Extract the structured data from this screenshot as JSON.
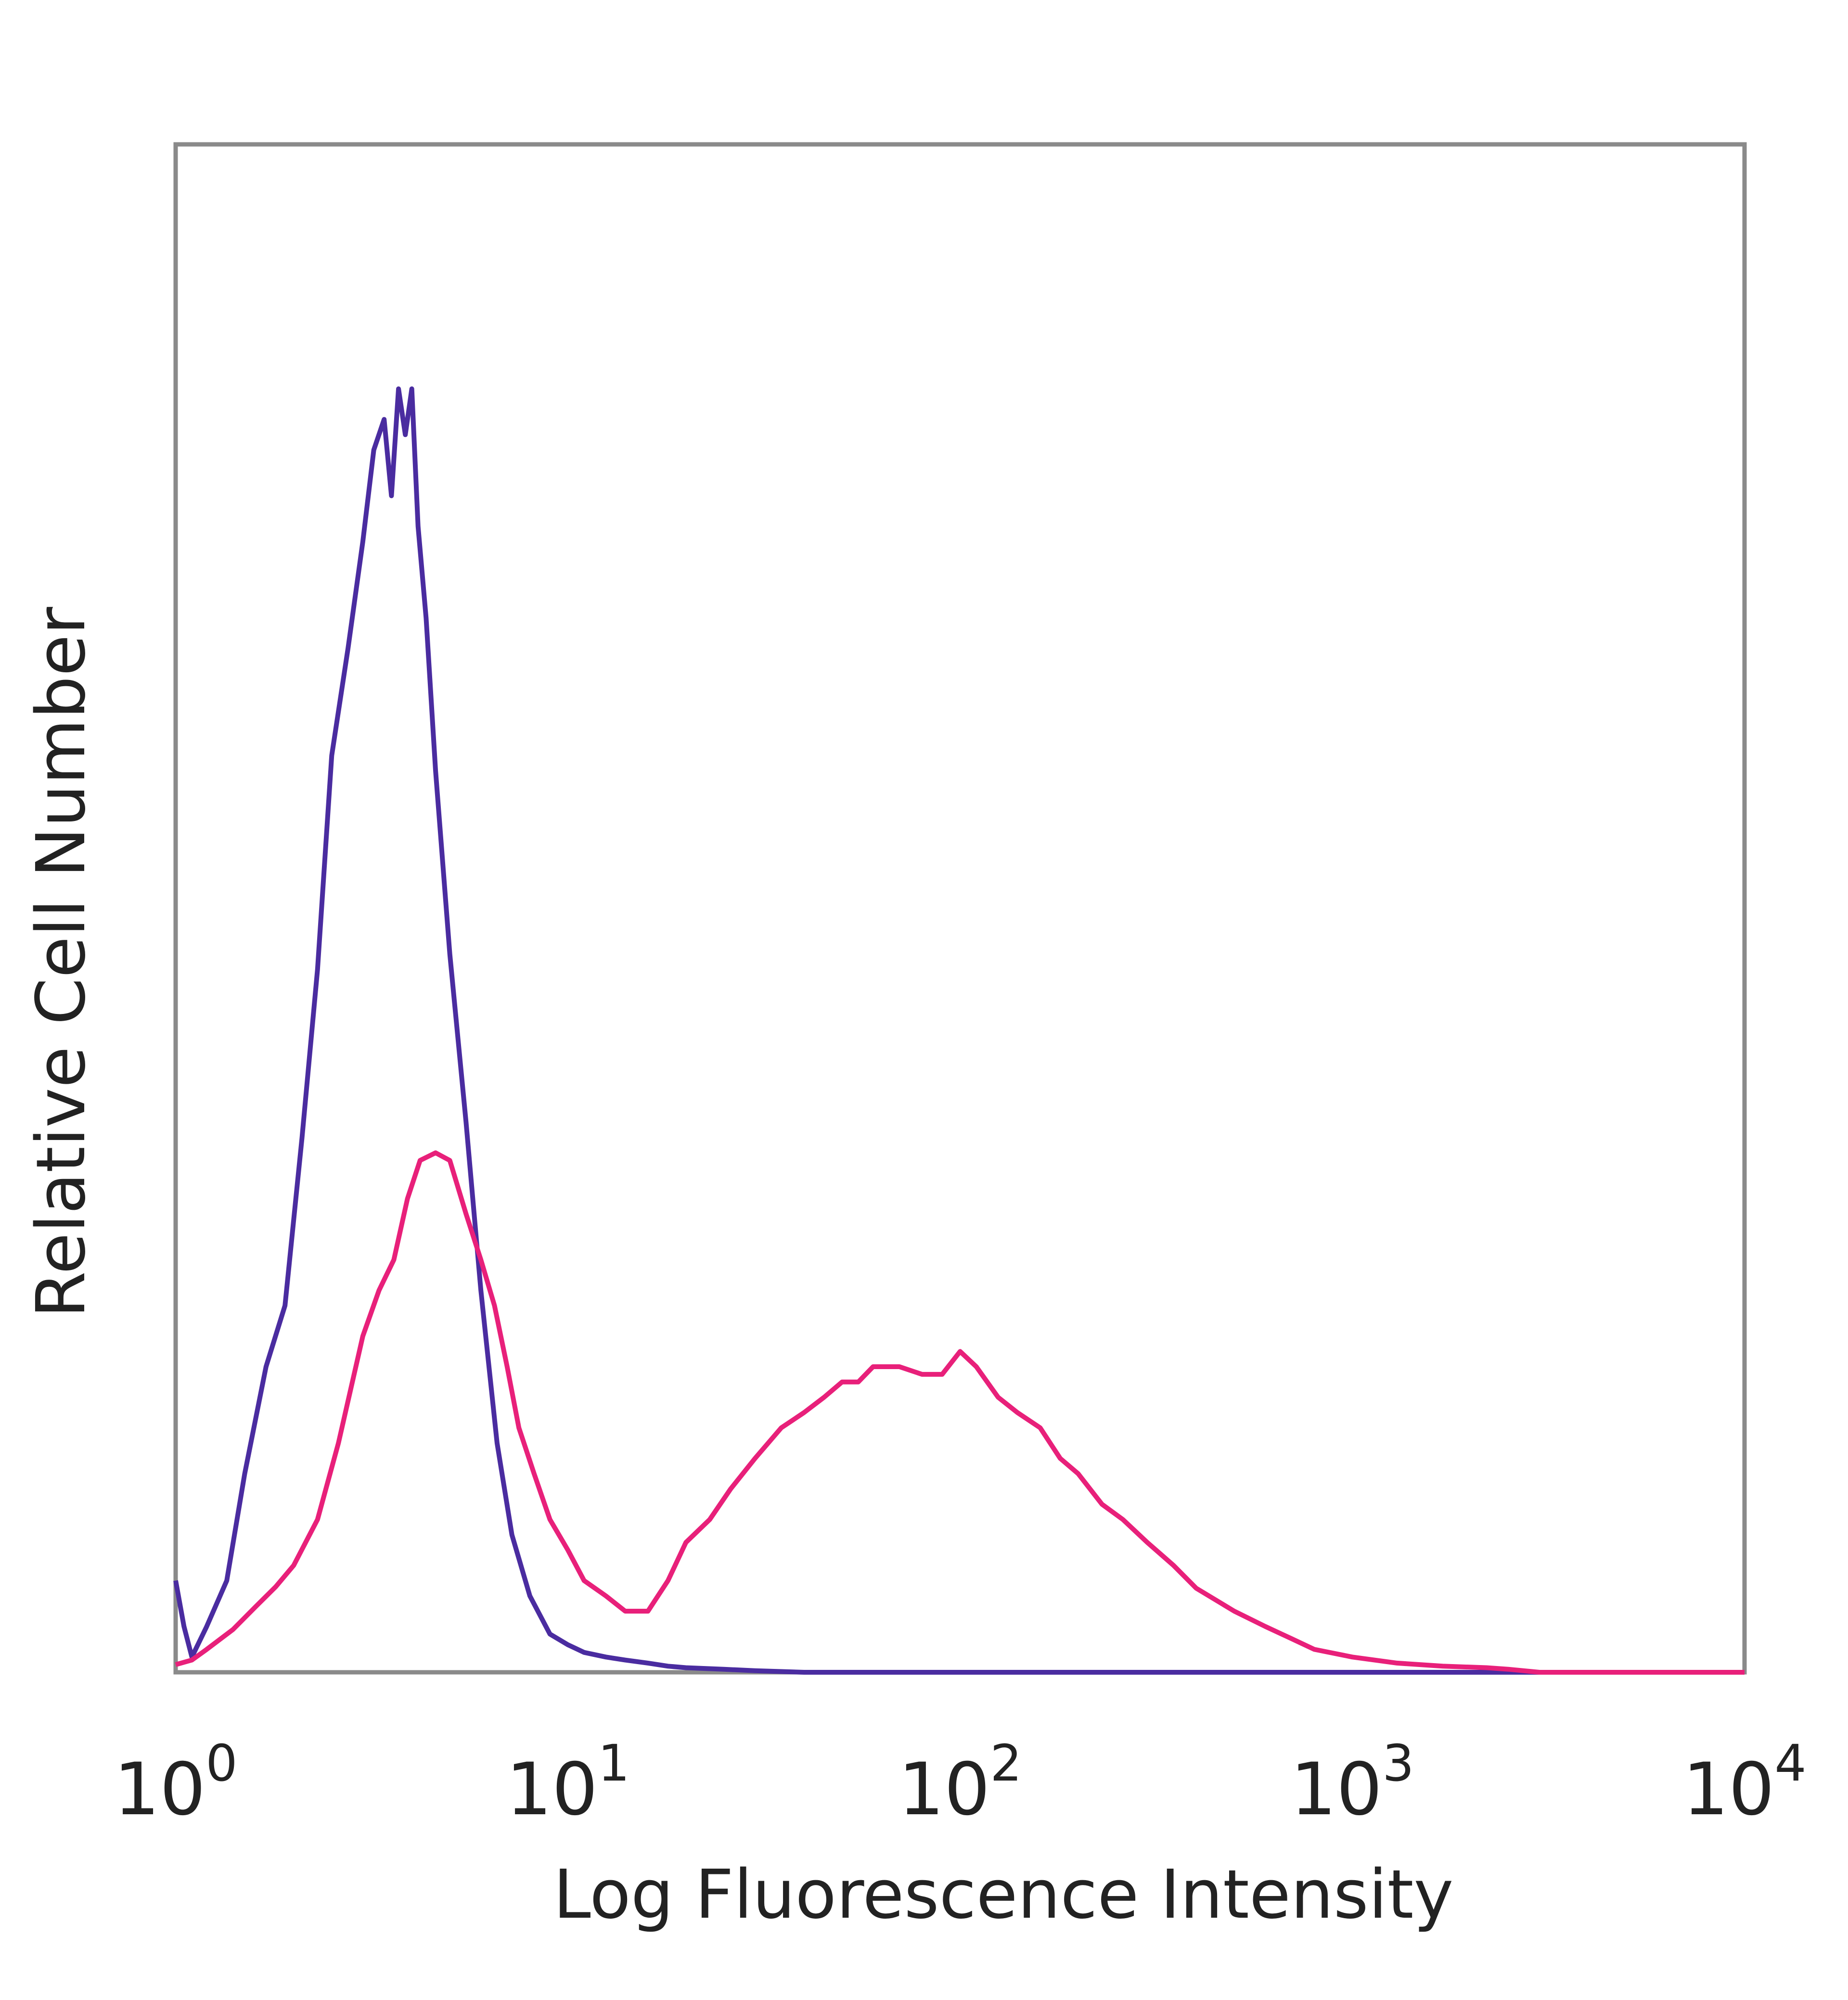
{
  "chart_data": {
    "type": "line",
    "title": "",
    "xlabel": "Log Fluorescence Intensity",
    "ylabel": "Relative Cell Number",
    "x_scale": "log",
    "xlim": [
      1,
      10000
    ],
    "ylim": [
      0,
      100
    ],
    "grid": false,
    "x_ticks": [
      {
        "base": "10",
        "exp": "0",
        "value": 1
      },
      {
        "base": "10",
        "exp": "1",
        "value": 10
      },
      {
        "base": "10",
        "exp": "2",
        "value": 100
      },
      {
        "base": "10",
        "exp": "3",
        "value": 1000
      },
      {
        "base": "10",
        "exp": "4",
        "value": 10000
      }
    ],
    "series": [
      {
        "color": "#4a2ca0",
        "x": [
          1.0,
          1.05,
          1.1,
          1.2,
          1.35,
          1.5,
          1.7,
          1.9,
          2.1,
          2.3,
          2.5,
          2.75,
          3.0,
          3.2,
          3.4,
          3.55,
          3.7,
          3.85,
          4.0,
          4.15,
          4.35,
          4.6,
          5.0,
          5.5,
          6.0,
          6.6,
          7.2,
          8.0,
          9.0,
          10.0,
          11.0,
          12.5,
          14.0,
          16.0,
          18.0,
          20.0,
          25.0,
          30.0,
          40.0,
          60.0,
          80.0,
          100.0,
          1000.0,
          10000.0
        ],
        "y": [
          6,
          3,
          1,
          3,
          6,
          13,
          20,
          24,
          35,
          46,
          60,
          67,
          74,
          80,
          82,
          77,
          84,
          81,
          84,
          75,
          69,
          59,
          47,
          36,
          25,
          15,
          9,
          5,
          2.5,
          1.8,
          1.3,
          1.0,
          0.8,
          0.6,
          0.4,
          0.3,
          0.2,
          0.1,
          0.0,
          0.0,
          0.0,
          0.0,
          0.0,
          0.0
        ]
      },
      {
        "color": "#e8207a",
        "x": [
          1.0,
          1.1,
          1.2,
          1.4,
          1.6,
          1.8,
          2.0,
          2.3,
          2.6,
          3.0,
          3.3,
          3.6,
          3.9,
          4.2,
          4.6,
          5.0,
          5.5,
          6.0,
          6.5,
          7.0,
          7.5,
          8.2,
          9.0,
          10.0,
          11.0,
          12.5,
          14.0,
          16.0,
          18.0,
          20.0,
          23.0,
          26.0,
          30.0,
          35.0,
          40.0,
          45.0,
          50.0,
          55.0,
          60.0,
          70.0,
          80.0,
          90.0,
          100.0,
          110.0,
          125.0,
          140.0,
          160.0,
          180.0,
          200.0,
          230.0,
          260.0,
          300.0,
          350.0,
          400.0,
          500.0,
          600.0,
          700.0,
          800.0,
          1000.0,
          1300.0,
          1700.0,
          2200.0,
          2500.0,
          3000.0,
          10000.0
        ],
        "y": [
          0.5,
          0.8,
          1.5,
          2.8,
          4.3,
          5.6,
          7,
          10,
          15,
          22,
          25,
          27,
          31,
          33.5,
          34,
          33.5,
          30,
          27,
          24,
          20,
          16,
          13,
          10,
          8,
          6,
          5,
          4,
          4,
          6,
          8.5,
          10,
          12,
          14,
          16,
          17,
          18,
          19,
          19,
          20,
          20,
          19.5,
          19.5,
          21,
          20,
          18,
          17,
          16,
          14,
          13,
          11,
          10,
          8.5,
          7,
          5.5,
          4,
          3,
          2.2,
          1.5,
          1.0,
          0.6,
          0.4,
          0.3,
          0.2,
          0.0,
          0.0
        ]
      }
    ]
  }
}
